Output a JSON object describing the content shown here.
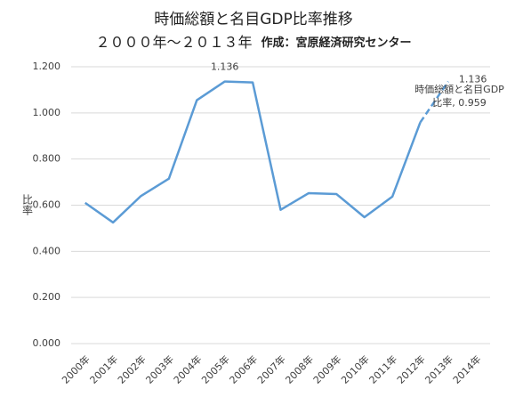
{
  "chart_data": {
    "type": "line",
    "title": "時価総額と名目GDP比率推移",
    "subtitle": "２０００年～２０１３年",
    "source": "作成：宮原経済研究センター",
    "y_label": "比率",
    "categories": [
      "2000年",
      "2001年",
      "2002年",
      "2003年",
      "2004年",
      "2005年",
      "2006年",
      "2007年",
      "2008年",
      "2009年",
      "2010年",
      "2011年",
      "2012年",
      "2013年",
      "2014年"
    ],
    "series": [
      {
        "name": "時価総額と名目GDP比率",
        "color": "#5b9bd5",
        "values": [
          0.61,
          0.525,
          0.64,
          0.715,
          1.055,
          1.136,
          1.132,
          0.58,
          0.652,
          0.648,
          0.548,
          0.637,
          0.959,
          1.136,
          null
        ],
        "value_labels": [
          null,
          null,
          null,
          null,
          null,
          "1.136",
          null,
          null,
          null,
          null,
          null,
          null,
          "時価総額と名目GDP比率, 0.959",
          "1.136",
          null
        ],
        "dashed_from": "2012年"
      }
    ],
    "ylim": [
      0,
      1.2
    ],
    "yticks": [
      {
        "value": 0,
        "label": "0.000"
      },
      {
        "value": 0.2,
        "label": "0.200"
      },
      {
        "value": 0.4,
        "label": "0.400"
      },
      {
        "value": 0.6,
        "label": "0.600"
      },
      {
        "value": 0.8,
        "label": "0.800"
      },
      {
        "value": 1,
        "label": "1.000"
      },
      {
        "value": 1.2,
        "label": "1.200"
      }
    ],
    "grid": true
  }
}
